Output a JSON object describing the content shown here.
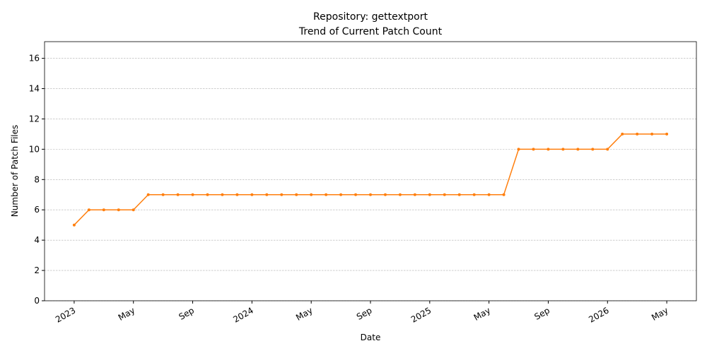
{
  "chart_data": {
    "type": "line",
    "title": "Repository: gettextport",
    "subtitle": "Trend of Current Patch Count",
    "x_label": "Date",
    "y_label": "Number of Patch Files",
    "x": [
      "2023-01",
      "2023-02",
      "2023-03",
      "2023-04",
      "2023-05",
      "2023-06",
      "2023-07",
      "2023-08",
      "2023-09",
      "2023-10",
      "2023-11",
      "2023-12",
      "2024-01",
      "2024-02",
      "2024-03",
      "2024-04",
      "2024-05",
      "2024-06",
      "2024-07",
      "2024-08",
      "2024-09",
      "2024-10",
      "2024-11",
      "2024-12",
      "2025-01",
      "2025-02",
      "2025-03",
      "2025-04",
      "2025-05",
      "2025-06",
      "2025-07",
      "2025-08",
      "2025-09",
      "2025-10",
      "2025-11",
      "2025-12",
      "2026-01",
      "2026-02",
      "2026-03",
      "2026-04",
      "2026-05"
    ],
    "series": [
      {
        "color": "#ff7f0e",
        "values": [
          5,
          6,
          6,
          6,
          6,
          7,
          7,
          7,
          7,
          7,
          7,
          7,
          7,
          7,
          7,
          7,
          7,
          7,
          7,
          7,
          7,
          7,
          7,
          7,
          7,
          7,
          7,
          7,
          7,
          7,
          10,
          10,
          10,
          10,
          10,
          10,
          10,
          11,
          11,
          11,
          11
        ]
      }
    ],
    "xlim": [
      "2022-11",
      "2026-07"
    ],
    "xticks": [
      {
        "value": "2023-01",
        "label": "2023"
      },
      {
        "value": "2023-05",
        "label": "May"
      },
      {
        "value": "2023-09",
        "label": "Sep"
      },
      {
        "value": "2024-01",
        "label": "2024"
      },
      {
        "value": "2024-05",
        "label": "May"
      },
      {
        "value": "2024-09",
        "label": "Sep"
      },
      {
        "value": "2025-01",
        "label": "2025"
      },
      {
        "value": "2025-05",
        "label": "May"
      },
      {
        "value": "2025-09",
        "label": "Sep"
      },
      {
        "value": "2026-01",
        "label": "2026"
      },
      {
        "value": "2026-05",
        "label": "May"
      }
    ],
    "ylim": [
      0,
      17.1
    ],
    "yticks": [
      0,
      2,
      4,
      6,
      8,
      10,
      12,
      14,
      16
    ],
    "grid": true
  }
}
